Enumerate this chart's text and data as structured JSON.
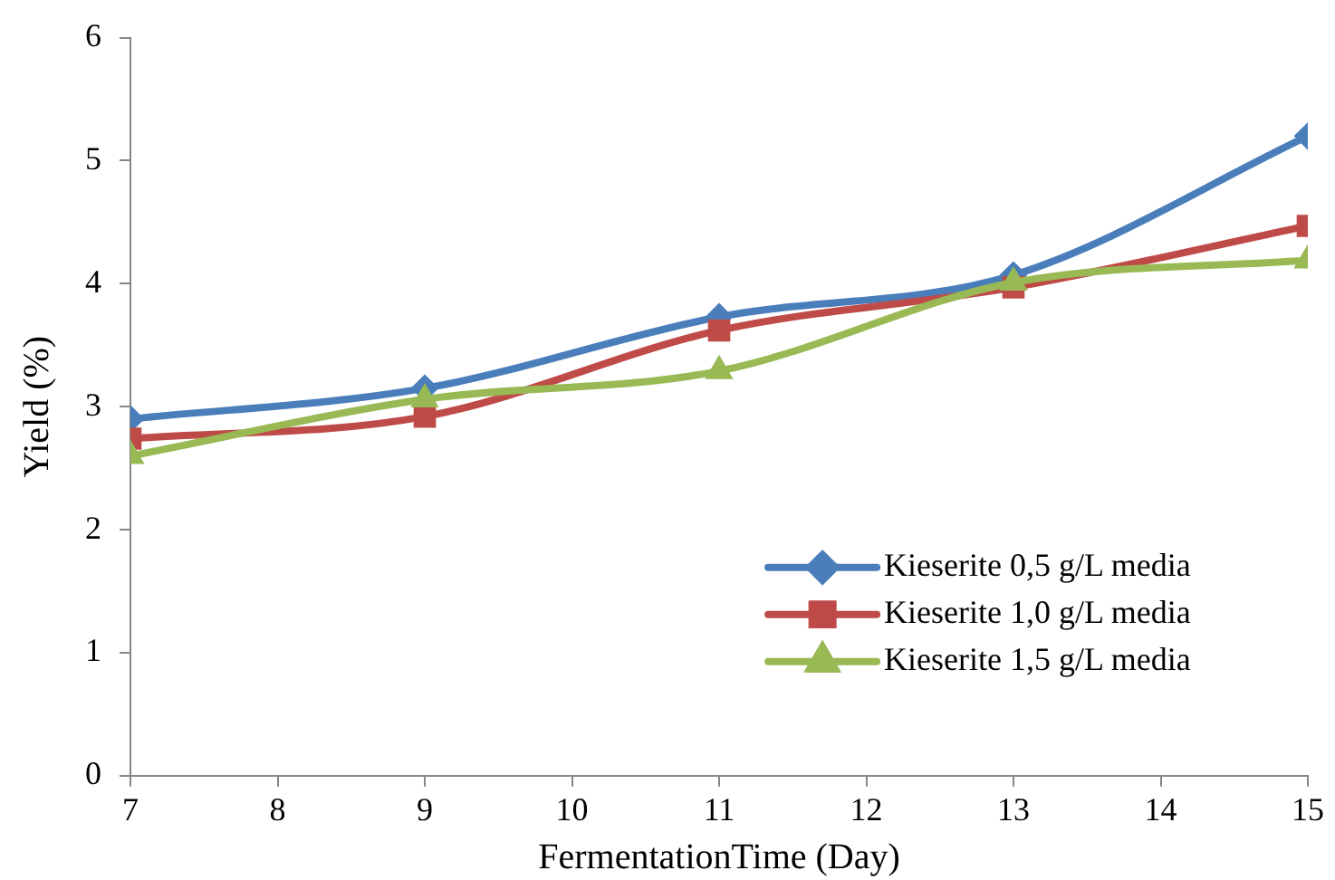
{
  "chart_data": {
    "type": "line",
    "xlabel": "FermentationTime (Day)",
    "ylabel": "Yield (%)",
    "x": [
      7,
      9,
      11,
      13,
      15
    ],
    "series": [
      {
        "name": "Kieserite 0,5 g/L media",
        "color": "#4a7ebb",
        "marker": "diamond",
        "values": [
          2.9,
          3.15,
          3.73,
          4.07,
          5.2
        ]
      },
      {
        "name": "Kieserite 1,0 g/L media",
        "color": "#be4b48",
        "marker": "square",
        "values": [
          2.74,
          2.92,
          3.62,
          3.97,
          4.47
        ]
      },
      {
        "name": "Kieserite 1,5 g/L media",
        "color": "#98b954",
        "marker": "triangle",
        "values": [
          2.6,
          3.06,
          3.29,
          4.01,
          4.19
        ]
      }
    ],
    "xlim": [
      7,
      15
    ],
    "xticks": [
      7,
      8,
      9,
      10,
      11,
      12,
      13,
      14,
      15
    ],
    "ylim": [
      0,
      6
    ],
    "yticks": [
      0,
      1,
      2,
      3,
      4,
      5,
      6
    ],
    "grid": false,
    "legend": "bottom right",
    "line_style": "solid"
  }
}
